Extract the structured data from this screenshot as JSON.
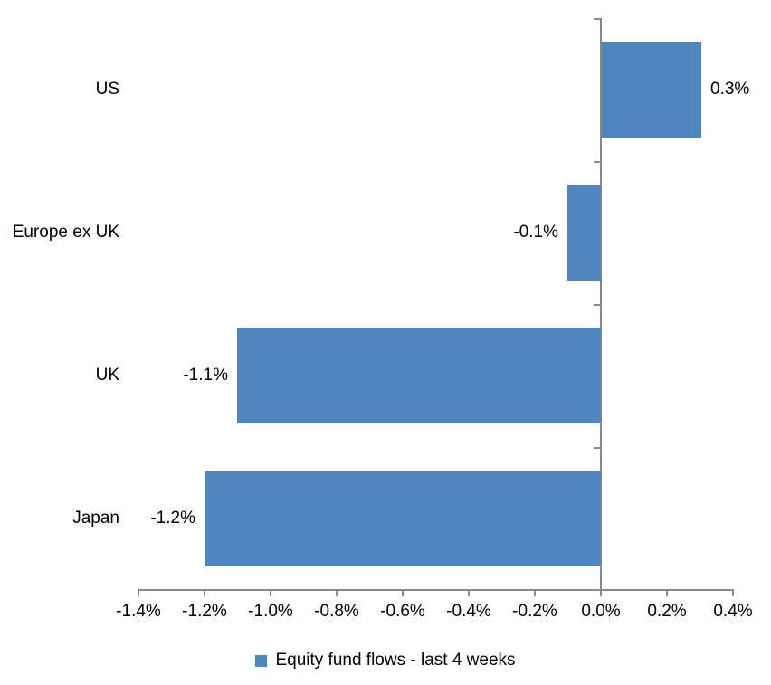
{
  "chart_data": {
    "type": "bar",
    "orientation": "horizontal",
    "title": "",
    "categories": [
      "US",
      "Europe ex UK",
      "UK",
      "Japan"
    ],
    "values": [
      0.3,
      -0.1,
      -1.1,
      -1.2
    ],
    "value_labels": [
      "0.3%",
      "-0.1%",
      "-1.1%",
      "-1.2%"
    ],
    "series_name": "Equity fund flows - last 4 weeks",
    "xlabel": "",
    "ylabel": "",
    "xlim": [
      -1.4,
      0.4
    ],
    "x_ticks": [
      -1.4,
      -1.2,
      -1.0,
      -0.8,
      -0.6,
      -0.4,
      -0.2,
      0.0,
      0.2,
      0.4
    ],
    "x_tick_labels": [
      "-1.4%",
      "-1.2%",
      "-1.0%",
      "-0.8%",
      "-0.6%",
      "-0.4%",
      "-0.2%",
      "0.0%",
      "0.2%",
      "0.4%"
    ],
    "grid": false,
    "legend_position": "bottom",
    "data_label_position": "outside-end",
    "bar_color": "#4e86bd",
    "axis_color": "#898989",
    "text_color": "#000000",
    "background_color": "#ffffff"
  },
  "legend": {
    "label": "Equity fund flows - last 4 weeks"
  }
}
